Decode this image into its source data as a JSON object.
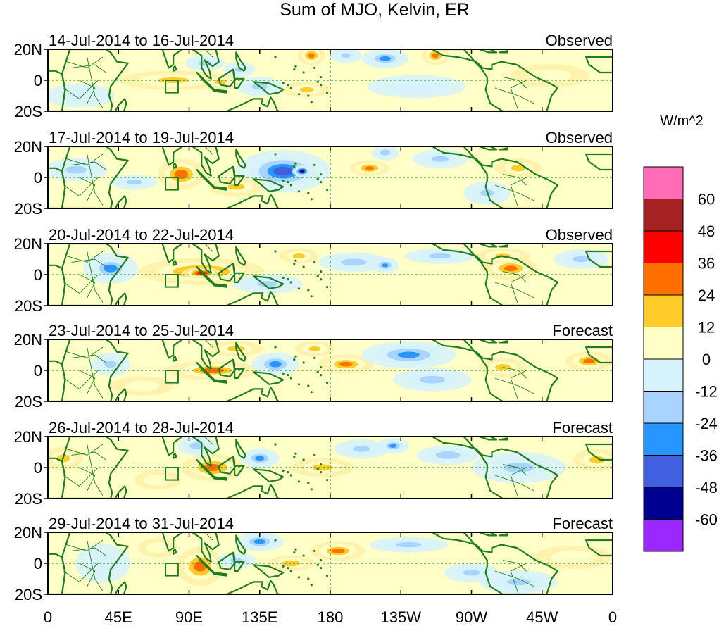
{
  "chart_data": {
    "type": "heatmap",
    "title": "Sum of MJO, Kelvin, ER",
    "variable_units": "W/m^2",
    "x_tick_labels": [
      "0",
      "45E",
      "90E",
      "135E",
      "180",
      "135W",
      "90W",
      "45W",
      "0"
    ],
    "x_tick_values_deg_east": [
      0,
      45,
      90,
      135,
      180,
      225,
      270,
      315,
      360
    ],
    "y_tick_labels": [
      "20N",
      "0",
      "20S"
    ],
    "y_tick_values": [
      20,
      0,
      -20
    ],
    "xlim": [
      0,
      360
    ],
    "ylim": [
      -20,
      20
    ],
    "colorbar": {
      "labels": [
        "60",
        "48",
        "36",
        "24",
        "12",
        "0",
        "-12",
        "-24",
        "-36",
        "-48",
        "-60"
      ],
      "levels": [
        60,
        48,
        36,
        24,
        12,
        0,
        -12,
        -24,
        -36,
        -48,
        -60
      ],
      "colors": [
        "#ff6db6",
        "#a52222",
        "#ff0000",
        "#ff7000",
        "#ffcc2a",
        "#ffffc8",
        "#d6f2fa",
        "#a8d4ff",
        "#2896ff",
        "#4060e0",
        "#000090",
        "#9a28ff"
      ]
    },
    "panels": [
      {
        "period": "14-Jul-2014 to 16-Jul-2014",
        "kind": "Observed",
        "anomalies": [
          {
            "lon": 80,
            "lat": 0,
            "rx": 28,
            "ry": 5,
            "v": 18
          },
          {
            "lon": 110,
            "lat": -1,
            "rx": 10,
            "ry": 4,
            "v": 16
          },
          {
            "lon": 135,
            "lat": -4,
            "rx": 12,
            "ry": 5,
            "v": -20
          },
          {
            "lon": 122,
            "lat": 7,
            "rx": 8,
            "ry": 4,
            "v": -18
          },
          {
            "lon": 100,
            "lat": 11,
            "rx": 10,
            "ry": 4,
            "v": -20
          },
          {
            "lon": 165,
            "lat": -6,
            "rx": 12,
            "ry": 4,
            "v": 16
          },
          {
            "lon": 168,
            "lat": 16,
            "rx": 7,
            "ry": 5,
            "v": 30
          },
          {
            "lon": 190,
            "lat": 16,
            "rx": 8,
            "ry": 4,
            "v": -18
          },
          {
            "lon": 215,
            "lat": 14,
            "rx": 12,
            "ry": 5,
            "v": -28
          },
          {
            "lon": 247,
            "lat": 16,
            "rx": 7,
            "ry": 5,
            "v": 30
          },
          {
            "lon": 235,
            "lat": -4,
            "rx": 25,
            "ry": 6,
            "v": -12
          },
          {
            "lon": 20,
            "lat": -10,
            "rx": 18,
            "ry": 6,
            "v": -10
          },
          {
            "lon": 320,
            "lat": 3,
            "rx": 20,
            "ry": 6,
            "v": 10
          }
        ]
      },
      {
        "period": "17-Jul-2014 to 19-Jul-2014",
        "kind": "Observed",
        "anomalies": [
          {
            "lon": 85,
            "lat": 2,
            "rx": 12,
            "ry": 8,
            "v": 34
          },
          {
            "lon": 150,
            "lat": 4,
            "rx": 24,
            "ry": 11,
            "v": -38
          },
          {
            "lon": 162,
            "lat": 4,
            "rx": 5,
            "ry": 3,
            "v": -55
          },
          {
            "lon": 205,
            "lat": 6,
            "rx": 10,
            "ry": 4,
            "v": 30
          },
          {
            "lon": 215,
            "lat": 16,
            "rx": 7,
            "ry": 4,
            "v": -22
          },
          {
            "lon": 18,
            "lat": 5,
            "rx": 16,
            "ry": 6,
            "v": -20
          },
          {
            "lon": 55,
            "lat": -3,
            "rx": 12,
            "ry": 4,
            "v": -14
          },
          {
            "lon": 120,
            "lat": -6,
            "rx": 14,
            "ry": 5,
            "v": 15
          },
          {
            "lon": 250,
            "lat": 12,
            "rx": 14,
            "ry": 5,
            "v": -16
          },
          {
            "lon": 280,
            "lat": -10,
            "rx": 12,
            "ry": 6,
            "v": -18
          },
          {
            "lon": 300,
            "lat": 6,
            "rx": 12,
            "ry": 5,
            "v": 14
          }
        ]
      },
      {
        "period": "20-Jul-2014 to 22-Jul-2014",
        "kind": "Observed",
        "anomalies": [
          {
            "lon": 98,
            "lat": 2,
            "rx": 32,
            "ry": 7,
            "v": 30
          },
          {
            "lon": 98,
            "lat": 1,
            "rx": 10,
            "ry": 3,
            "v": 44
          },
          {
            "lon": 40,
            "lat": 4,
            "rx": 14,
            "ry": 8,
            "v": -26
          },
          {
            "lon": 195,
            "lat": 8,
            "rx": 18,
            "ry": 5,
            "v": -22
          },
          {
            "lon": 215,
            "lat": 6,
            "rx": 7,
            "ry": 4,
            "v": -30
          },
          {
            "lon": 140,
            "lat": -6,
            "rx": 18,
            "ry": 5,
            "v": -18
          },
          {
            "lon": 160,
            "lat": 12,
            "rx": 10,
            "ry": 4,
            "v": 14
          },
          {
            "lon": 295,
            "lat": 4,
            "rx": 14,
            "ry": 6,
            "v": 28
          },
          {
            "lon": 290,
            "lat": 12,
            "rx": 14,
            "ry": 4,
            "v": 18
          },
          {
            "lon": 250,
            "lat": 12,
            "rx": 18,
            "ry": 4,
            "v": -14
          },
          {
            "lon": 340,
            "lat": 10,
            "rx": 14,
            "ry": 5,
            "v": -16
          }
        ]
      },
      {
        "period": "23-Jul-2014 to 25-Jul-2014",
        "kind": "Forecast",
        "anomalies": [
          {
            "lon": 105,
            "lat": 0,
            "rx": 24,
            "ry": 5,
            "v": 26
          },
          {
            "lon": 145,
            "lat": 4,
            "rx": 12,
            "ry": 6,
            "v": -32
          },
          {
            "lon": 190,
            "lat": 4,
            "rx": 14,
            "ry": 5,
            "v": 28
          },
          {
            "lon": 230,
            "lat": 10,
            "rx": 24,
            "ry": 7,
            "v": -30
          },
          {
            "lon": 120,
            "lat": 14,
            "rx": 14,
            "ry": 4,
            "v": 14
          },
          {
            "lon": 170,
            "lat": 14,
            "rx": 10,
            "ry": 4,
            "v": 16
          },
          {
            "lon": 345,
            "lat": 6,
            "rx": 12,
            "ry": 5,
            "v": 28
          },
          {
            "lon": 290,
            "lat": 2,
            "rx": 12,
            "ry": 5,
            "v": 14
          },
          {
            "lon": 245,
            "lat": -6,
            "rx": 20,
            "ry": 6,
            "v": -14
          },
          {
            "lon": 40,
            "lat": 4,
            "rx": 10,
            "ry": 6,
            "v": -16
          },
          {
            "lon": 60,
            "lat": -10,
            "rx": 16,
            "ry": 5,
            "v": 10
          }
        ]
      },
      {
        "period": "26-Jul-2014 to 28-Jul-2014",
        "kind": "Forecast",
        "anomalies": [
          {
            "lon": 105,
            "lat": 0,
            "rx": 16,
            "ry": 7,
            "v": 32
          },
          {
            "lon": 95,
            "lat": 14,
            "rx": 10,
            "ry": 5,
            "v": -22
          },
          {
            "lon": 135,
            "lat": 6,
            "rx": 10,
            "ry": 5,
            "v": -28
          },
          {
            "lon": 175,
            "lat": 0,
            "rx": 16,
            "ry": 5,
            "v": 14
          },
          {
            "lon": 200,
            "lat": 12,
            "rx": 14,
            "ry": 5,
            "v": -16
          },
          {
            "lon": 220,
            "lat": 14,
            "rx": 8,
            "ry": 4,
            "v": -28
          },
          {
            "lon": 255,
            "lat": 8,
            "rx": 16,
            "ry": 5,
            "v": -24
          },
          {
            "lon": 70,
            "lat": -8,
            "rx": 12,
            "ry": 5,
            "v": 12
          },
          {
            "lon": 300,
            "lat": 0,
            "rx": 24,
            "ry": 8,
            "v": -14
          },
          {
            "lon": 350,
            "lat": 5,
            "rx": 12,
            "ry": 6,
            "v": 14
          },
          {
            "lon": 10,
            "lat": 6,
            "rx": 10,
            "ry": 6,
            "v": 14
          }
        ]
      },
      {
        "period": "29-Jul-2014 to 31-Jul-2014",
        "kind": "Forecast",
        "anomalies": [
          {
            "lon": 97,
            "lat": -2,
            "rx": 12,
            "ry": 10,
            "v": 32
          },
          {
            "lon": 135,
            "lat": 14,
            "rx": 12,
            "ry": 5,
            "v": -28
          },
          {
            "lon": 185,
            "lat": 8,
            "rx": 14,
            "ry": 5,
            "v": 26
          },
          {
            "lon": 155,
            "lat": 0,
            "rx": 12,
            "ry": 4,
            "v": 24
          },
          {
            "lon": 120,
            "lat": 2,
            "rx": 10,
            "ry": 4,
            "v": -16
          },
          {
            "lon": 230,
            "lat": 12,
            "rx": 20,
            "ry": 4,
            "v": -14
          },
          {
            "lon": 300,
            "lat": -12,
            "rx": 20,
            "ry": 6,
            "v": -18
          },
          {
            "lon": 335,
            "lat": 4,
            "rx": 20,
            "ry": 6,
            "v": 12
          },
          {
            "lon": 35,
            "lat": 0,
            "rx": 14,
            "ry": 10,
            "v": -12
          },
          {
            "lon": 70,
            "lat": 10,
            "rx": 10,
            "ry": 5,
            "v": 12
          },
          {
            "lon": 270,
            "lat": -6,
            "rx": 14,
            "ry": 5,
            "v": -16
          }
        ]
      }
    ]
  },
  "map_colors": {
    "coast": "#1f7d1f",
    "grid": "#1f7d1f",
    "base": "#ffffc8"
  }
}
